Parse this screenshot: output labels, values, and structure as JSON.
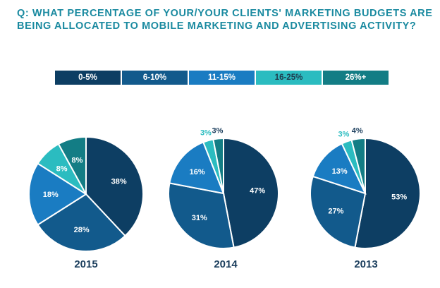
{
  "question": "Q: WHAT PERCENTAGE OF YOUR/YOUR CLIENTS' MARKETING BUDGETS ARE BEING ALLOCATED TO MOBILE MARKETING AND ADVERTISING ACTIVITY?",
  "legend": [
    {
      "label": "0-5%",
      "color": "#0d3e63"
    },
    {
      "label": "6-10%",
      "color": "#125a8c"
    },
    {
      "label": "11-15%",
      "color": "#1a7cc2"
    },
    {
      "label": "16-25%",
      "color": "#2bbcc0"
    },
    {
      "label": "26%+",
      "color": "#137d85"
    }
  ],
  "chart_data": [
    {
      "type": "pie",
      "title": "2015",
      "categories": [
        "0-5%",
        "6-10%",
        "11-15%",
        "16-25%",
        "26%+"
      ],
      "values": [
        38,
        28,
        18,
        8,
        8
      ],
      "labels": [
        "38%",
        "28%",
        "18%",
        "8%",
        "8%"
      ]
    },
    {
      "type": "pie",
      "title": "2014",
      "categories": [
        "0-5%",
        "6-10%",
        "11-15%",
        "16-25%",
        "26%+"
      ],
      "values": [
        47,
        31,
        16,
        3,
        3
      ],
      "labels": [
        "47%",
        "31%",
        "16%",
        "3%",
        "3%"
      ]
    },
    {
      "type": "pie",
      "title": "2013",
      "categories": [
        "0-5%",
        "6-10%",
        "11-15%",
        "16-25%",
        "26%+"
      ],
      "values": [
        53,
        27,
        13,
        3,
        4
      ],
      "labels": [
        "53%",
        "27%",
        "13%",
        "3%",
        "4%"
      ]
    }
  ]
}
